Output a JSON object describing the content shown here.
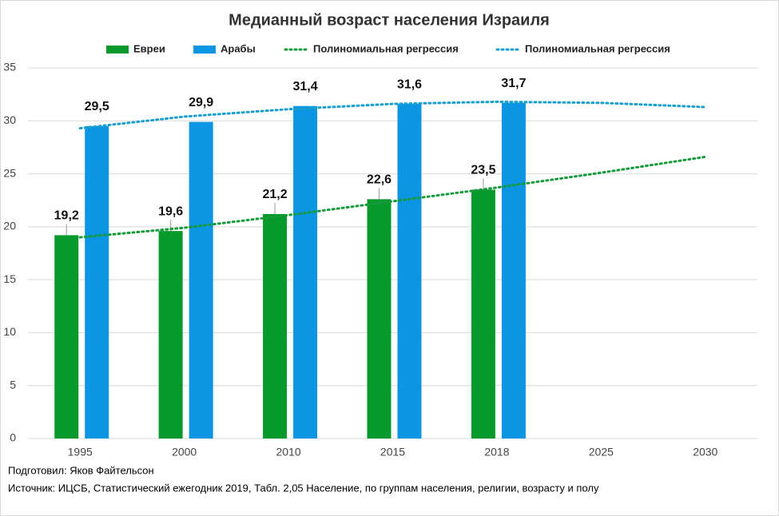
{
  "chart_data": {
    "type": "bar",
    "title": "Медианный возраст населения Израиля",
    "categories": [
      "1995",
      "2000",
      "2010",
      "2015",
      "2018",
      "2025",
      "2030"
    ],
    "series": [
      {
        "name": "Евреи",
        "color": "#07992c",
        "values": [
          19.2,
          19.6,
          21.2,
          22.6,
          23.5,
          null,
          null
        ],
        "value_labels": [
          "19,2",
          "19,6",
          "21,2",
          "22,6",
          "23,5",
          null,
          null
        ]
      },
      {
        "name": "Арабы",
        "color": "#0b95e2",
        "values": [
          29.5,
          29.9,
          31.4,
          31.6,
          31.7,
          null,
          null
        ],
        "value_labels": [
          "29,5",
          "29,9",
          "31,4",
          "31,6",
          "31,7",
          null,
          null
        ]
      },
      {
        "name": "Полиномиальная регрессия",
        "type": "line",
        "style": "dotted",
        "color": "#169a3c",
        "values": [
          19.0,
          19.9,
          21.1,
          22.4,
          23.7,
          25.1,
          26.6
        ]
      },
      {
        "name": "Полиномиальная регрессия",
        "type": "line",
        "style": "dotted",
        "color": "#1a9fcf",
        "values": [
          29.3,
          30.4,
          31.1,
          31.6,
          31.8,
          31.7,
          31.3
        ]
      }
    ],
    "ylim": [
      0,
      35
    ],
    "yticks": [
      0,
      5,
      10,
      15,
      20,
      25,
      30,
      35
    ],
    "grid": true,
    "legend": "top",
    "notes": [
      "Подготовил: Яков Файтельсон",
      "Источник: ИЦСБ, Статистический ежегодник 2019, Табл. 2,05 Население, по группам населения, религии, возрасту и полу"
    ]
  }
}
